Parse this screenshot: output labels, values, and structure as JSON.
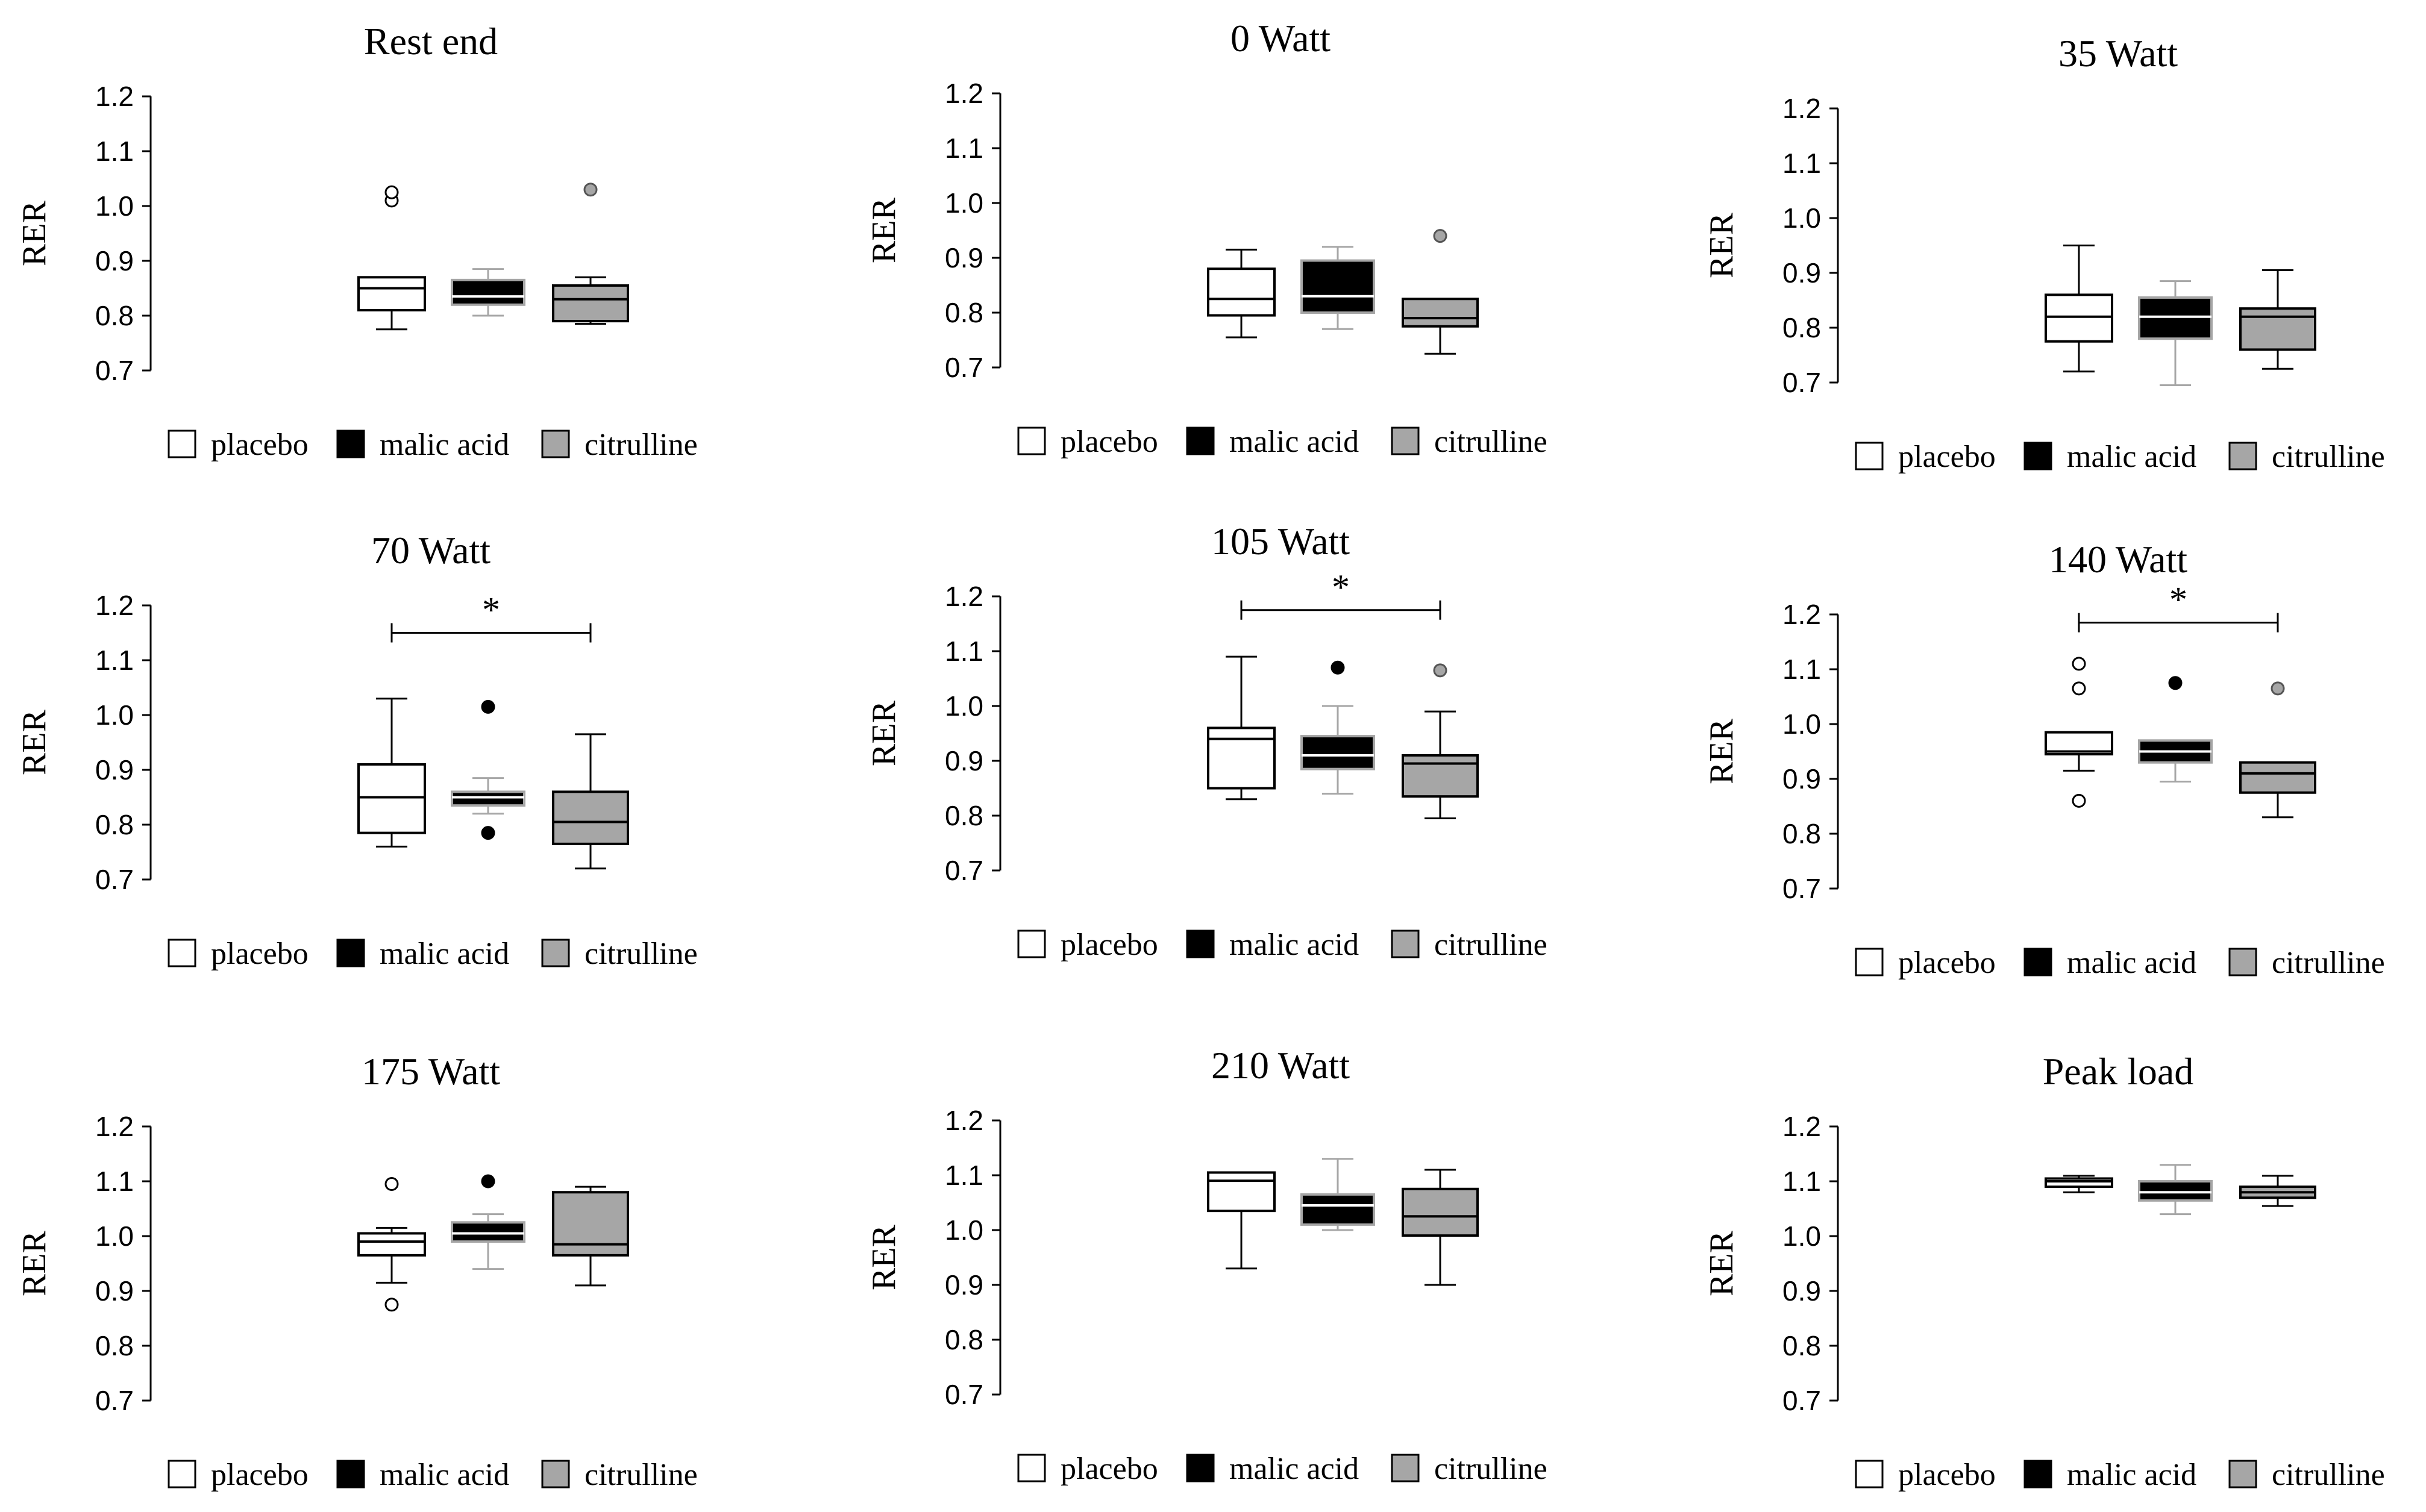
{
  "figure": {
    "ylabel": "RER"
  },
  "legend_items": [
    {
      "label": "placebo",
      "color": "#ffffff"
    },
    {
      "label": "malic acid",
      "color": "#000000"
    },
    {
      "label": "citrulline",
      "color": "#a6a6a6"
    }
  ],
  "chart_data": [
    {
      "type": "box",
      "title": "Rest end",
      "ylabel": "RER",
      "ylim": [
        0.7,
        1.2
      ],
      "yticks": [
        "0.7",
        "0.8",
        "0.9",
        "1.0",
        "1.1",
        "1.2"
      ],
      "categories": [
        "placebo",
        "malic acid",
        "citrulline"
      ],
      "significance": null,
      "boxes": [
        {
          "name": "placebo",
          "q1": 0.81,
          "median": 0.85,
          "q3": 0.87,
          "whisker_low": 0.775,
          "whisker_high": 0.87,
          "outliers": [
            1.01,
            1.025
          ]
        },
        {
          "name": "malic acid",
          "q1": 0.82,
          "median": 0.835,
          "q3": 0.865,
          "whisker_low": 0.8,
          "whisker_high": 0.885,
          "outliers": []
        },
        {
          "name": "citrulline",
          "q1": 0.79,
          "median": 0.83,
          "q3": 0.855,
          "whisker_low": 0.785,
          "whisker_high": 0.87,
          "outliers": [
            1.03
          ]
        }
      ]
    },
    {
      "type": "box",
      "title": "0 Watt",
      "ylabel": "RER",
      "ylim": [
        0.7,
        1.2
      ],
      "yticks": [
        "0.7",
        "0.8",
        "0.9",
        "1.0",
        "1.1",
        "1.2"
      ],
      "categories": [
        "placebo",
        "malic acid",
        "citrulline"
      ],
      "significance": null,
      "boxes": [
        {
          "name": "placebo",
          "q1": 0.795,
          "median": 0.825,
          "q3": 0.88,
          "whisker_low": 0.755,
          "whisker_high": 0.915,
          "outliers": []
        },
        {
          "name": "malic acid",
          "q1": 0.8,
          "median": 0.83,
          "q3": 0.895,
          "whisker_low": 0.77,
          "whisker_high": 0.92,
          "outliers": []
        },
        {
          "name": "citrulline",
          "q1": 0.775,
          "median": 0.79,
          "q3": 0.825,
          "whisker_low": 0.725,
          "whisker_high": 0.825,
          "outliers": [
            0.94
          ]
        }
      ]
    },
    {
      "type": "box",
      "title": "35 Watt",
      "ylabel": "RER",
      "ylim": [
        0.7,
        1.2
      ],
      "yticks": [
        "0.7",
        "0.8",
        "0.9",
        "1.0",
        "1.1",
        "1.2"
      ],
      "categories": [
        "placebo",
        "malic acid",
        "citrulline"
      ],
      "significance": null,
      "boxes": [
        {
          "name": "placebo",
          "q1": 0.775,
          "median": 0.82,
          "q3": 0.86,
          "whisker_low": 0.72,
          "whisker_high": 0.95,
          "outliers": []
        },
        {
          "name": "malic acid",
          "q1": 0.78,
          "median": 0.82,
          "q3": 0.855,
          "whisker_low": 0.695,
          "whisker_high": 0.885,
          "outliers": []
        },
        {
          "name": "citrulline",
          "q1": 0.76,
          "median": 0.82,
          "q3": 0.835,
          "whisker_low": 0.725,
          "whisker_high": 0.905,
          "outliers": []
        }
      ]
    },
    {
      "type": "box",
      "title": "70 Watt",
      "ylabel": "RER",
      "ylim": [
        0.7,
        1.2
      ],
      "yticks": [
        "0.7",
        "0.8",
        "0.9",
        "1.0",
        "1.1",
        "1.2"
      ],
      "categories": [
        "placebo",
        "malic acid",
        "citrulline"
      ],
      "significance": {
        "from": 0,
        "to": 2,
        "y": 1.15,
        "label": "*"
      },
      "boxes": [
        {
          "name": "placebo",
          "q1": 0.785,
          "median": 0.85,
          "q3": 0.91,
          "whisker_low": 0.76,
          "whisker_high": 1.03,
          "outliers": []
        },
        {
          "name": "malic acid",
          "q1": 0.835,
          "median": 0.85,
          "q3": 0.86,
          "whisker_low": 0.82,
          "whisker_high": 0.885,
          "outliers": [
            1.015,
            0.785
          ]
        },
        {
          "name": "citrulline",
          "q1": 0.765,
          "median": 0.805,
          "q3": 0.86,
          "whisker_low": 0.72,
          "whisker_high": 0.965,
          "outliers": []
        }
      ]
    },
    {
      "type": "box",
      "title": "105 Watt",
      "ylabel": "RER",
      "ylim": [
        0.7,
        1.2
      ],
      "yticks": [
        "0.7",
        "0.8",
        "0.9",
        "1.0",
        "1.1",
        "1.2"
      ],
      "categories": [
        "placebo",
        "malic acid",
        "citrulline"
      ],
      "significance": {
        "from": 0,
        "to": 2,
        "y": 1.175,
        "label": "*"
      },
      "boxes": [
        {
          "name": "placebo",
          "q1": 0.85,
          "median": 0.94,
          "q3": 0.96,
          "whisker_low": 0.83,
          "whisker_high": 1.09,
          "outliers": []
        },
        {
          "name": "malic acid",
          "q1": 0.885,
          "median": 0.91,
          "q3": 0.945,
          "whisker_low": 0.84,
          "whisker_high": 1.0,
          "outliers": [
            1.07
          ]
        },
        {
          "name": "citrulline",
          "q1": 0.835,
          "median": 0.895,
          "q3": 0.91,
          "whisker_low": 0.795,
          "whisker_high": 0.99,
          "outliers": [
            1.065
          ]
        }
      ]
    },
    {
      "type": "box",
      "title": "140 Watt",
      "ylabel": "RER",
      "ylim": [
        0.7,
        1.2
      ],
      "yticks": [
        "0.7",
        "0.8",
        "0.9",
        "1.0",
        "1.1",
        "1.2"
      ],
      "categories": [
        "placebo",
        "malic acid",
        "citrulline"
      ],
      "significance": {
        "from": 0,
        "to": 2,
        "y": 1.185,
        "label": "*"
      },
      "boxes": [
        {
          "name": "placebo",
          "q1": 0.945,
          "median": 0.95,
          "q3": 0.985,
          "whisker_low": 0.915,
          "whisker_high": 0.985,
          "outliers": [
            1.11,
            1.065,
            0.86
          ]
        },
        {
          "name": "malic acid",
          "q1": 0.93,
          "median": 0.95,
          "q3": 0.97,
          "whisker_low": 0.895,
          "whisker_high": 0.97,
          "outliers": [
            1.075
          ]
        },
        {
          "name": "citrulline",
          "q1": 0.875,
          "median": 0.91,
          "q3": 0.93,
          "whisker_low": 0.83,
          "whisker_high": 0.93,
          "outliers": [
            1.065
          ]
        }
      ]
    },
    {
      "type": "box",
      "title": "175 Watt",
      "ylabel": "RER",
      "ylim": [
        0.7,
        1.2
      ],
      "yticks": [
        "0.7",
        "0.8",
        "0.9",
        "1.0",
        "1.1",
        "1.2"
      ],
      "categories": [
        "placebo",
        "malic acid",
        "citrulline"
      ],
      "significance": null,
      "boxes": [
        {
          "name": "placebo",
          "q1": 0.965,
          "median": 0.99,
          "q3": 1.005,
          "whisker_low": 0.915,
          "whisker_high": 1.015,
          "outliers": [
            1.095,
            0.875
          ]
        },
        {
          "name": "malic acid",
          "q1": 0.99,
          "median": 1.005,
          "q3": 1.025,
          "whisker_low": 0.94,
          "whisker_high": 1.04,
          "outliers": [
            1.1
          ]
        },
        {
          "name": "citrulline",
          "q1": 0.965,
          "median": 0.985,
          "q3": 1.08,
          "whisker_low": 0.91,
          "whisker_high": 1.09,
          "outliers": []
        }
      ]
    },
    {
      "type": "box",
      "title": "210 Watt",
      "ylabel": "RER",
      "ylim": [
        0.7,
        1.2
      ],
      "yticks": [
        "0.7",
        "0.8",
        "0.9",
        "1.0",
        "1.1",
        "1.2"
      ],
      "categories": [
        "placebo",
        "malic acid",
        "citrulline"
      ],
      "significance": null,
      "boxes": [
        {
          "name": "placebo",
          "q1": 1.035,
          "median": 1.09,
          "q3": 1.105,
          "whisker_low": 0.93,
          "whisker_high": 1.105,
          "outliers": []
        },
        {
          "name": "malic acid",
          "q1": 1.01,
          "median": 1.045,
          "q3": 1.065,
          "whisker_low": 1.0,
          "whisker_high": 1.13,
          "outliers": []
        },
        {
          "name": "citrulline",
          "q1": 0.99,
          "median": 1.025,
          "q3": 1.075,
          "whisker_low": 0.9,
          "whisker_high": 1.11,
          "outliers": []
        }
      ]
    },
    {
      "type": "box",
      "title": "Peak load",
      "ylabel": "RER",
      "ylim": [
        0.7,
        1.2
      ],
      "yticks": [
        "0.7",
        "0.8",
        "0.9",
        "1.0",
        "1.1",
        "1.2"
      ],
      "categories": [
        "placebo",
        "malic acid",
        "citrulline"
      ],
      "significance": null,
      "boxes": [
        {
          "name": "placebo",
          "q1": 1.09,
          "median": 1.1,
          "q3": 1.105,
          "whisker_low": 1.08,
          "whisker_high": 1.11,
          "outliers": []
        },
        {
          "name": "malic acid",
          "q1": 1.065,
          "median": 1.08,
          "q3": 1.1,
          "whisker_low": 1.04,
          "whisker_high": 1.13,
          "outliers": []
        },
        {
          "name": "citrulline",
          "q1": 1.07,
          "median": 1.08,
          "q3": 1.09,
          "whisker_low": 1.055,
          "whisker_high": 1.11,
          "outliers": []
        }
      ]
    }
  ]
}
